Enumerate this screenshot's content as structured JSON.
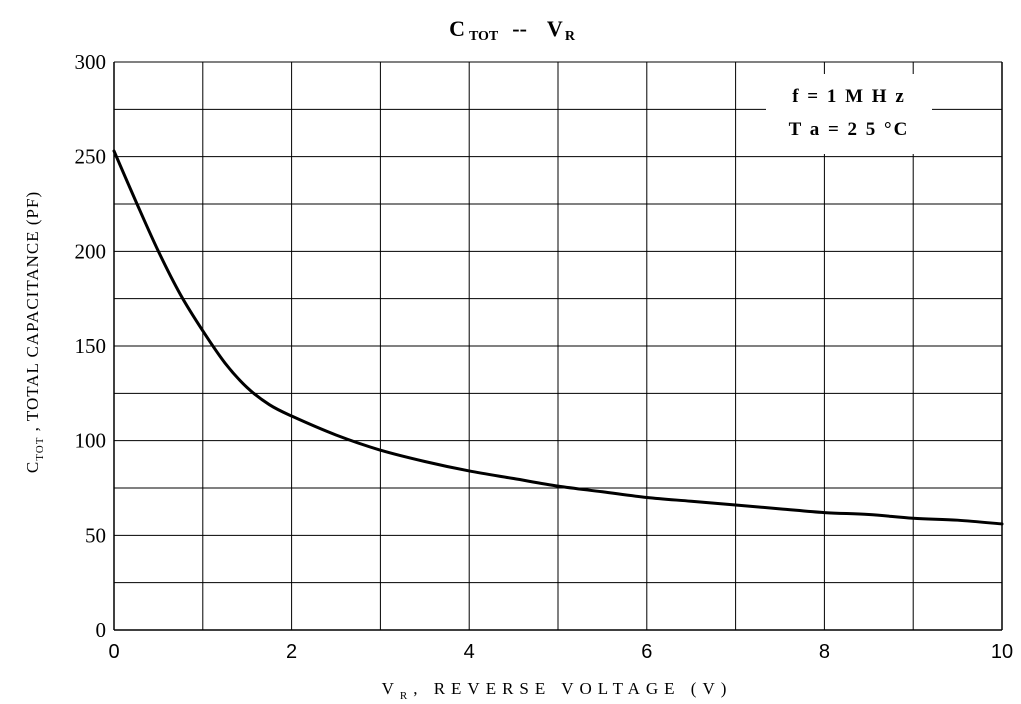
{
  "chart_data": {
    "type": "line",
    "title": {
      "left_main": "C",
      "left_sub": "TOT",
      "separator": "--",
      "right_main": "V",
      "right_sub": "R"
    },
    "xlabel": {
      "main": "V",
      "sub": "R",
      "rest": ", REVERSE VOLTAGE (V)"
    },
    "ylabel": {
      "main": "C",
      "sub": "TOT",
      "rest": " ,   TOTAL  CAPACITANCE (PF)"
    },
    "xlim": [
      0,
      10
    ],
    "ylim": [
      0,
      300
    ],
    "x_ticks": [
      0,
      2,
      4,
      6,
      8,
      10
    ],
    "y_ticks": [
      0,
      50,
      100,
      150,
      200,
      250,
      300
    ],
    "x_grid_step": 1,
    "y_grid_step": 25,
    "grid": true,
    "annotations": [
      {
        "text": "f = 1 M H z"
      },
      {
        "text": "T a = 2 5 °C"
      }
    ],
    "annotation_placement": "top-right",
    "series": [
      {
        "color": "#000000",
        "x": [
          0,
          0.25,
          0.5,
          0.75,
          1.0,
          1.25,
          1.5,
          1.75,
          2.0,
          2.5,
          3.0,
          3.5,
          4.0,
          4.5,
          5.0,
          5.5,
          6.0,
          6.5,
          7.0,
          7.5,
          8.0,
          8.5,
          9.0,
          9.5,
          10.0
        ],
        "y": [
          253,
          226,
          200,
          177,
          158,
          141,
          128,
          119,
          113,
          103,
          95,
          89,
          84,
          80,
          76,
          73,
          70,
          68,
          66,
          64,
          62,
          61,
          59,
          58,
          56
        ]
      }
    ]
  }
}
